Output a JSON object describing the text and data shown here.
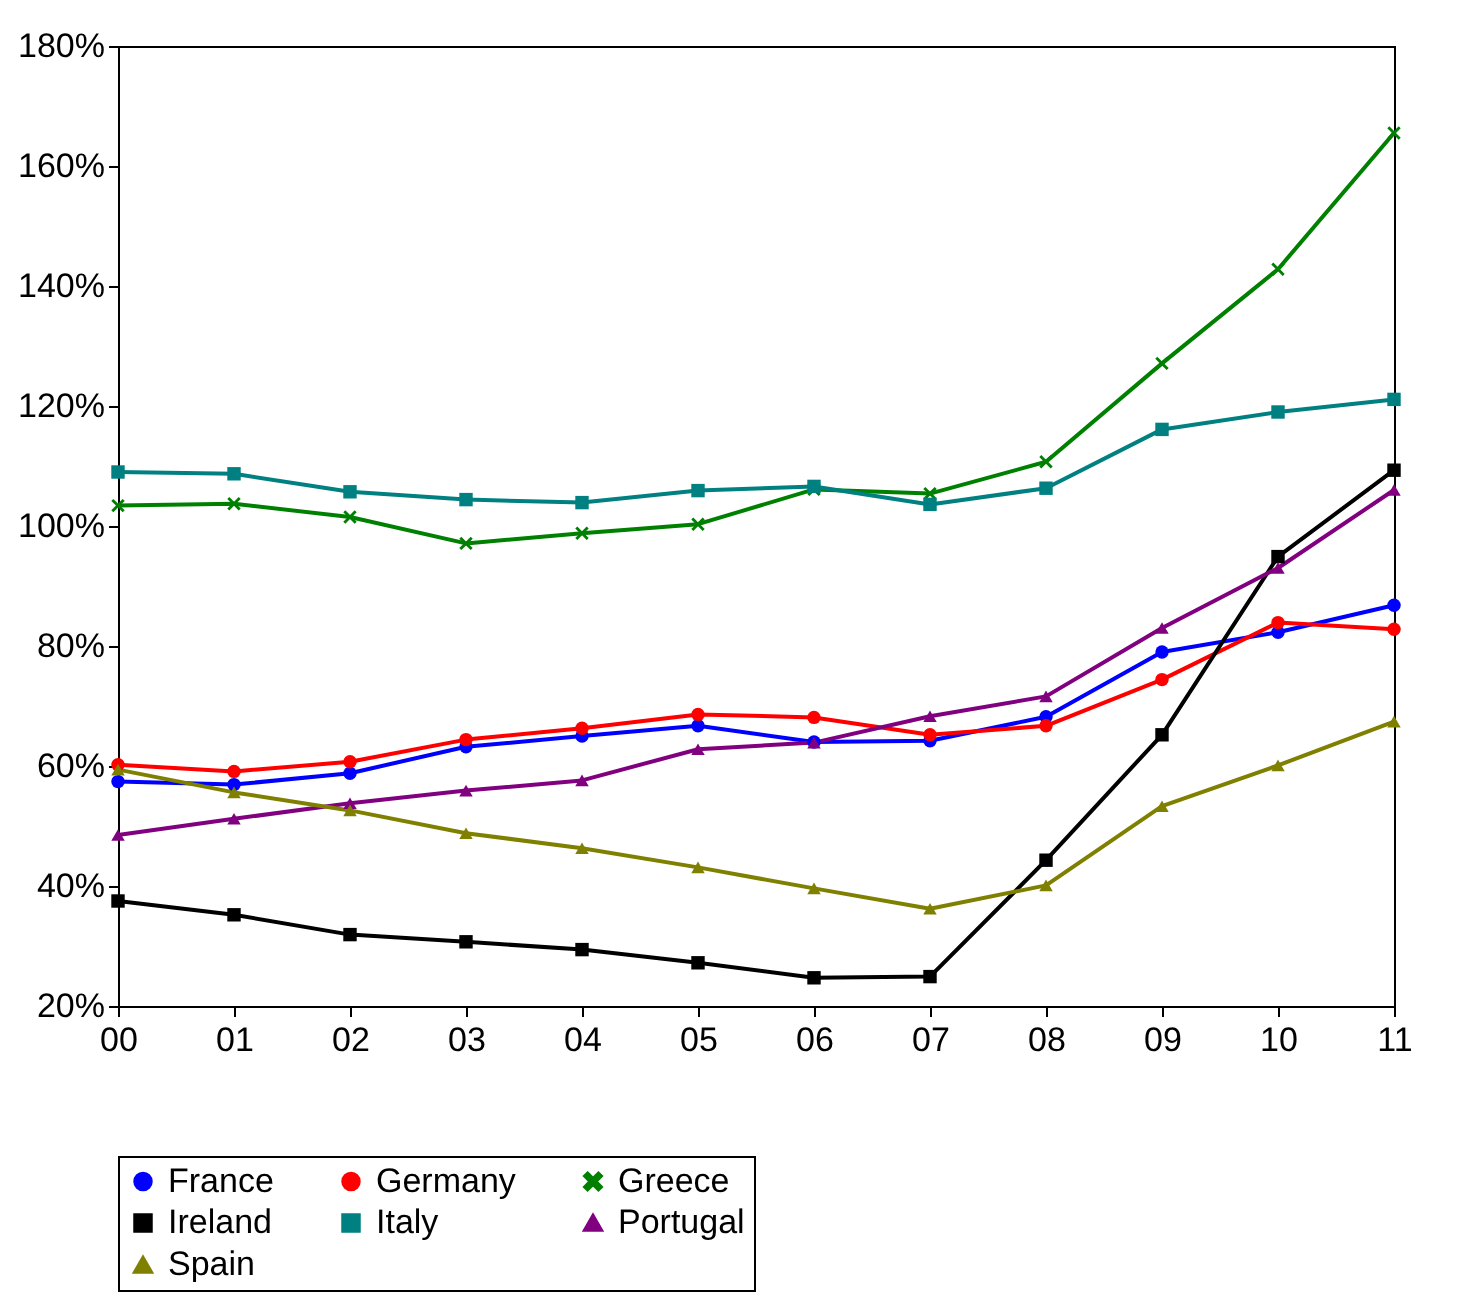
{
  "chart_data": {
    "type": "line",
    "categories": [
      "00",
      "01",
      "02",
      "03",
      "04",
      "05",
      "06",
      "07",
      "08",
      "09",
      "10",
      "11"
    ],
    "series": [
      {
        "name": "France",
        "color": "#0000ff",
        "marker": "circle",
        "values": [
          57.4,
          56.9,
          58.8,
          63.2,
          65.0,
          66.7,
          64.0,
          64.2,
          68.2,
          79.0,
          82.3,
          86.8
        ]
      },
      {
        "name": "Germany",
        "color": "#ff0000",
        "marker": "circle",
        "values": [
          60.2,
          59.1,
          60.7,
          64.4,
          66.3,
          68.6,
          68.1,
          65.2,
          66.7,
          74.4,
          83.9,
          82.8
        ]
      },
      {
        "name": "Greece",
        "color": "#008000",
        "marker": "cross",
        "values": [
          103.4,
          103.7,
          101.5,
          97.1,
          98.8,
          100.3,
          106.1,
          105.4,
          110.7,
          127.1,
          142.8,
          165.5
        ]
      },
      {
        "name": "Ireland",
        "color": "#000000",
        "marker": "square",
        "values": [
          37.5,
          35.2,
          31.9,
          30.7,
          29.4,
          27.2,
          24.7,
          24.9,
          44.3,
          65.2,
          94.9,
          109.3
        ]
      },
      {
        "name": "Italy",
        "color": "#008080",
        "marker": "square",
        "values": [
          109.0,
          108.7,
          105.7,
          104.4,
          103.9,
          105.9,
          106.6,
          103.6,
          106.3,
          116.1,
          119.0,
          121.1
        ]
      },
      {
        "name": "Portugal",
        "color": "#800080",
        "marker": "triangle",
        "values": [
          48.5,
          51.2,
          53.8,
          55.9,
          57.6,
          62.8,
          63.9,
          68.3,
          71.6,
          83.0,
          93.0,
          106.0
        ]
      },
      {
        "name": "Spain",
        "color": "#808000",
        "marker": "triangle",
        "values": [
          59.4,
          55.6,
          52.6,
          48.8,
          46.3,
          43.1,
          39.6,
          36.2,
          40.1,
          53.3,
          60.1,
          67.4
        ]
      }
    ],
    "ylim": [
      20,
      180
    ],
    "yticks": [
      {
        "value": 20,
        "label": "20%"
      },
      {
        "value": 40,
        "label": "40%"
      },
      {
        "value": 60,
        "label": "60%"
      },
      {
        "value": 80,
        "label": "80%"
      },
      {
        "value": 100,
        "label": "100%"
      },
      {
        "value": 120,
        "label": "120%"
      },
      {
        "value": 140,
        "label": "140%"
      },
      {
        "value": 160,
        "label": "160%"
      },
      {
        "value": 180,
        "label": "180%"
      }
    ],
    "grid": false,
    "legend": "bottom",
    "line_style": "solid"
  }
}
